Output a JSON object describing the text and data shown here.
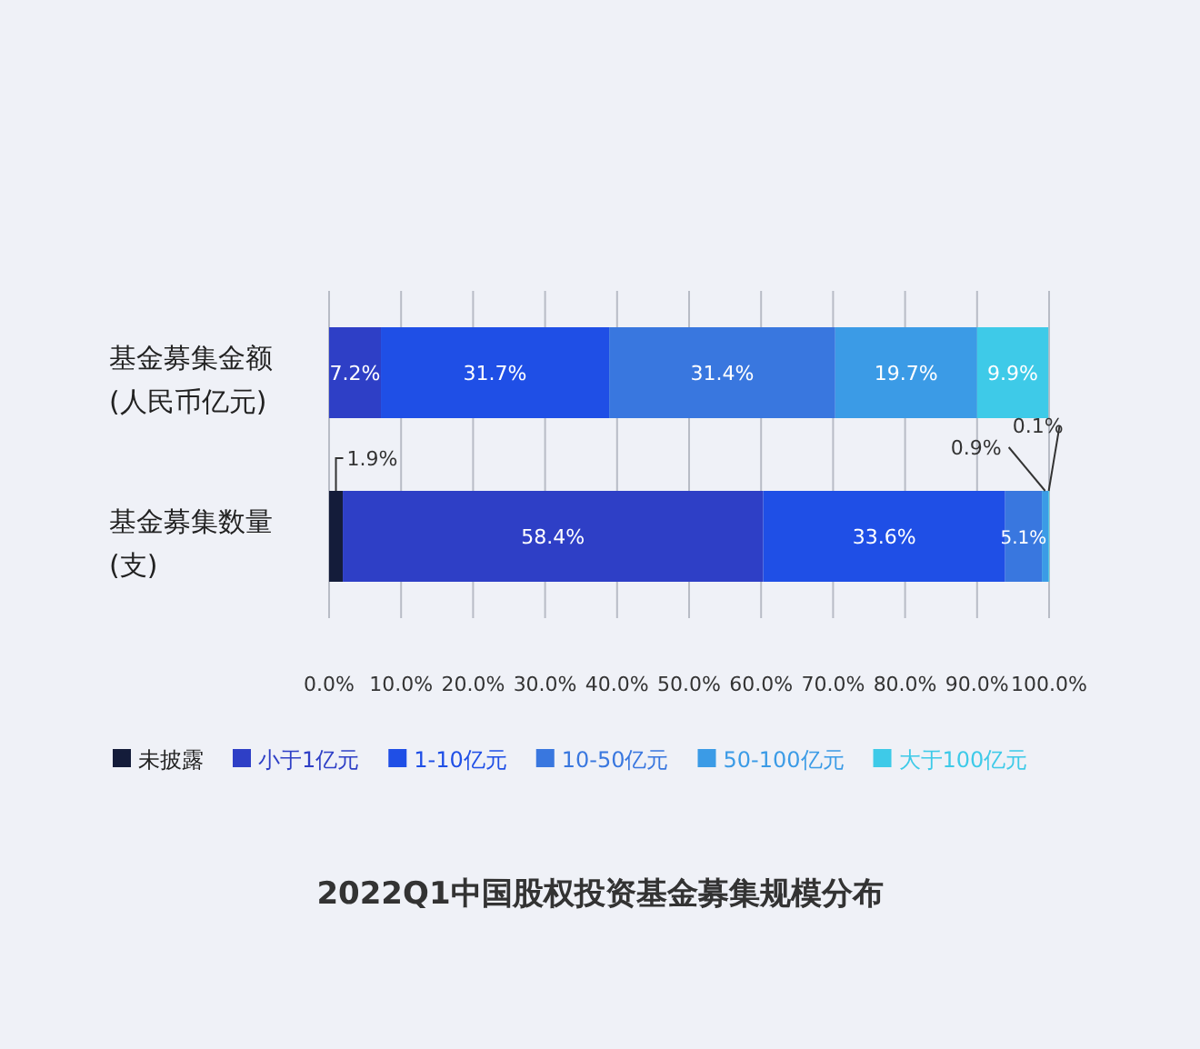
{
  "chart_data": {
    "type": "bar",
    "orientation": "horizontal",
    "stacked": true,
    "title": "2022Q1中国股权投资基金募集规模分布",
    "categories": [
      "基金募集金额\n(人民币亿元)",
      "基金募集数量\n(支)"
    ],
    "series": [
      {
        "name": "未披露",
        "color": "#141c3a",
        "values": [
          null,
          1.9
        ],
        "value_labels": [
          null,
          "1.9%"
        ]
      },
      {
        "name": "小于1亿元",
        "color": "#2e3fc6",
        "values": [
          7.2,
          58.4
        ],
        "value_labels": [
          "7.2%",
          "58.4%"
        ]
      },
      {
        "name": "1-10亿元",
        "color": "#1f4fe6",
        "values": [
          31.7,
          33.6
        ],
        "value_labels": [
          "31.7%",
          "33.6%"
        ]
      },
      {
        "name": "10-50亿元",
        "color": "#3977df",
        "values": [
          31.4,
          5.1
        ],
        "value_labels": [
          "31.4%",
          "5.1%"
        ]
      },
      {
        "name": "50-100亿元",
        "color": "#3b9be6",
        "values": [
          19.7,
          0.9
        ],
        "value_labels": [
          "19.7%",
          "0.9%"
        ]
      },
      {
        "name": "大于100亿元",
        "color": "#3ecae8",
        "values": [
          9.9,
          0.1
        ],
        "value_labels": [
          "9.9%",
          "0.1%"
        ]
      }
    ],
    "xlim": [
      0,
      100
    ],
    "xticks": [
      {
        "value": 0,
        "label": "0.0%"
      },
      {
        "value": 10,
        "label": "10.0%"
      },
      {
        "value": 20,
        "label": "20.0%"
      },
      {
        "value": 30,
        "label": "30.0%"
      },
      {
        "value": 40,
        "label": "40.0%"
      },
      {
        "value": 50,
        "label": "50.0%"
      },
      {
        "value": 60,
        "label": "60.0%"
      },
      {
        "value": 70,
        "label": "70.0%"
      },
      {
        "value": 80,
        "label": "80.0%"
      },
      {
        "value": 90,
        "label": "90.0%"
      },
      {
        "value": 100,
        "label": "100.0%"
      }
    ],
    "grid": "x",
    "legend": "bottom"
  }
}
